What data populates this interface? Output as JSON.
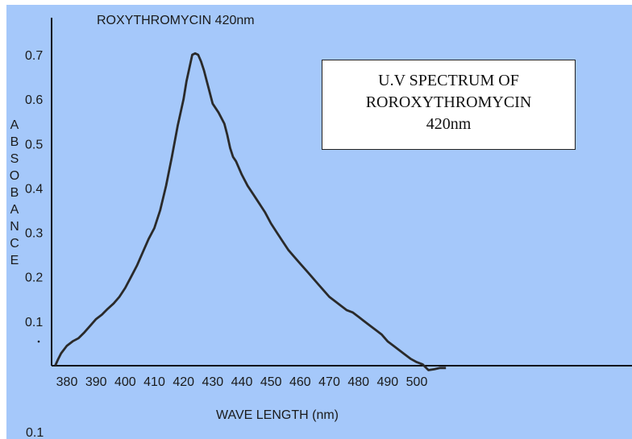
{
  "chart_data": {
    "type": "line",
    "title": "ROXYTHROMYCIN 420nm",
    "xlabel": "WAVE LENGTH (nm)",
    "ylabel": "ABSOBANCE",
    "xlim": [
      375,
      510
    ],
    "ylim": [
      0,
      0.75
    ],
    "x_ticks": [
      380,
      390,
      400,
      410,
      420,
      430,
      440,
      450,
      460,
      470,
      480,
      490,
      500
    ],
    "y_ticks": [
      0.1,
      0.2,
      0.3,
      0.4,
      0.5,
      0.6,
      0.7
    ],
    "y_tick_labels": [
      "0.1",
      "0.2",
      "0.3",
      "0.4",
      "0.5",
      "0.6",
      "0.7"
    ],
    "extra_label": "0.1",
    "annotation_lines": [
      "U.V SPECTRUM OF",
      "ROROXYTHROMYCIN",
      "420nm"
    ],
    "series": [
      {
        "x": [
          376,
          377,
          378,
          380,
          382,
          384,
          386,
          388,
          390,
          392,
          394,
          396,
          398,
          400,
          402,
          404,
          406,
          408,
          410,
          412,
          414,
          416,
          418,
          420,
          421,
          422,
          423,
          424,
          425,
          426,
          427,
          428,
          429,
          430,
          432,
          434,
          435,
          436,
          437,
          438,
          440,
          442,
          444,
          446,
          448,
          450,
          452,
          454,
          456,
          458,
          460,
          462,
          464,
          466,
          468,
          470,
          472,
          474,
          476,
          478,
          480,
          482,
          484,
          486,
          488,
          490,
          492,
          494,
          496,
          498,
          500,
          502,
          504,
          506,
          508,
          510
        ],
        "y": [
          0.0,
          0.015,
          0.028,
          0.045,
          0.055,
          0.062,
          0.075,
          0.09,
          0.105,
          0.115,
          0.128,
          0.14,
          0.155,
          0.175,
          0.2,
          0.225,
          0.255,
          0.285,
          0.31,
          0.35,
          0.405,
          0.47,
          0.54,
          0.6,
          0.64,
          0.67,
          0.7,
          0.703,
          0.7,
          0.685,
          0.665,
          0.64,
          0.615,
          0.59,
          0.57,
          0.545,
          0.52,
          0.49,
          0.47,
          0.46,
          0.43,
          0.405,
          0.385,
          0.365,
          0.345,
          0.32,
          0.3,
          0.28,
          0.26,
          0.245,
          0.23,
          0.215,
          0.2,
          0.185,
          0.17,
          0.155,
          0.145,
          0.135,
          0.125,
          0.12,
          0.11,
          0.1,
          0.09,
          0.08,
          0.07,
          0.055,
          0.045,
          0.035,
          0.025,
          0.015,
          0.008,
          0.003,
          -0.01,
          -0.008,
          -0.005,
          -0.005
        ]
      }
    ]
  },
  "colors": {
    "plot_background": "#a5c8fa",
    "curve": "#2a2a2a",
    "axis": "#111111",
    "text": "#1a1a1a",
    "accent_left": "#e8302a"
  }
}
